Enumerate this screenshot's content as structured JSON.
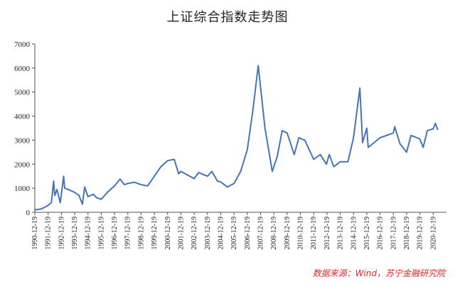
{
  "colors": {
    "line": "#4674b4",
    "source": "#e8262b",
    "axis": "#555555"
  },
  "source_note": "数据来源：Wind，苏宁金融研究院",
  "chart_data": {
    "type": "line",
    "title": "上证综合指数走势图",
    "xlabel": "",
    "ylabel": "",
    "ylim": [
      0,
      7000
    ],
    "y_ticks": [
      0,
      1000,
      2000,
      3000,
      4000,
      5000,
      6000,
      7000
    ],
    "grid": false,
    "legend": "none",
    "x_tick_labels": [
      "1990-12-19",
      "1991-12-19",
      "1992-12-19",
      "1993-12-19",
      "1994-12-19",
      "1995-12-19",
      "1996-12-19",
      "1997-12-19",
      "1998-12-19",
      "1999-12-19",
      "2000-12-19",
      "2001-12-19",
      "2002-12-19",
      "2003-12-19",
      "2004-12-19",
      "2005-12-19",
      "2006-12-19",
      "2007-12-19",
      "2008-12-19",
      "2009-12-19",
      "2010-12-19",
      "2011-12-19",
      "2012-12-19",
      "2013-12-19",
      "2014-12-19",
      "2015-12-19",
      "2016-12-19",
      "2017-12-19",
      "2018-12-19",
      "2019-12-19",
      "2020-12-19"
    ],
    "series": [
      {
        "x": [
          "1990-12-19",
          "1991-06-19",
          "1991-12-19",
          "1992-03-19",
          "1992-05-19",
          "1992-06-19",
          "1992-08-19",
          "1992-11-19",
          "1993-02-19",
          "1993-03-19",
          "1993-06-19",
          "1993-12-19",
          "1994-04-19",
          "1994-07-19",
          "1994-09-19",
          "1994-12-19",
          "1995-05-19",
          "1995-08-19",
          "1995-12-19",
          "1996-06-19",
          "1996-12-19",
          "1997-05-19",
          "1997-09-19",
          "1997-12-19",
          "1998-06-19",
          "1998-12-19",
          "1999-06-19",
          "1999-12-19",
          "2000-06-19",
          "2000-12-19",
          "2001-06-19",
          "2001-10-19",
          "2001-12-19",
          "2002-06-19",
          "2002-12-19",
          "2003-04-19",
          "2003-12-19",
          "2004-04-19",
          "2004-09-19",
          "2004-12-19",
          "2005-06-19",
          "2005-12-19",
          "2006-06-19",
          "2006-12-19",
          "2007-05-19",
          "2007-10-16",
          "2007-12-19",
          "2008-04-19",
          "2008-08-19",
          "2008-11-04",
          "2009-03-19",
          "2009-08-04",
          "2009-12-19",
          "2010-07-02",
          "2010-11-08",
          "2011-04-19",
          "2011-12-19",
          "2012-06-19",
          "2012-12-04",
          "2013-02-19",
          "2013-06-25",
          "2013-12-19",
          "2014-07-19",
          "2014-12-19",
          "2015-06-12",
          "2015-08-26",
          "2015-12-19",
          "2016-01-28",
          "2016-12-19",
          "2017-12-19",
          "2018-01-26",
          "2018-06-19",
          "2018-12-19",
          "2019-04-19",
          "2019-12-19",
          "2020-03-19",
          "2020-07-09",
          "2020-12-19",
          "2021-02-18",
          "2021-04-19"
        ],
        "values": [
          100,
          140,
          290,
          400,
          1300,
          700,
          950,
          400,
          1500,
          1000,
          950,
          830,
          700,
          330,
          1050,
          650,
          750,
          600,
          540,
          850,
          1100,
          1380,
          1150,
          1200,
          1250,
          1150,
          1100,
          1500,
          1900,
          2150,
          2200,
          1600,
          1700,
          1550,
          1400,
          1650,
          1500,
          1700,
          1300,
          1260,
          1050,
          1200,
          1700,
          2600,
          4200,
          6100,
          5200,
          3500,
          2400,
          1700,
          2300,
          3400,
          3300,
          2400,
          3100,
          3000,
          2200,
          2400,
          2000,
          2400,
          1900,
          2100,
          2100,
          3100,
          5170,
          2900,
          3500,
          2700,
          3100,
          3300,
          3560,
          2850,
          2500,
          3200,
          3050,
          2700,
          3400,
          3470,
          3700,
          3450
        ]
      }
    ]
  }
}
